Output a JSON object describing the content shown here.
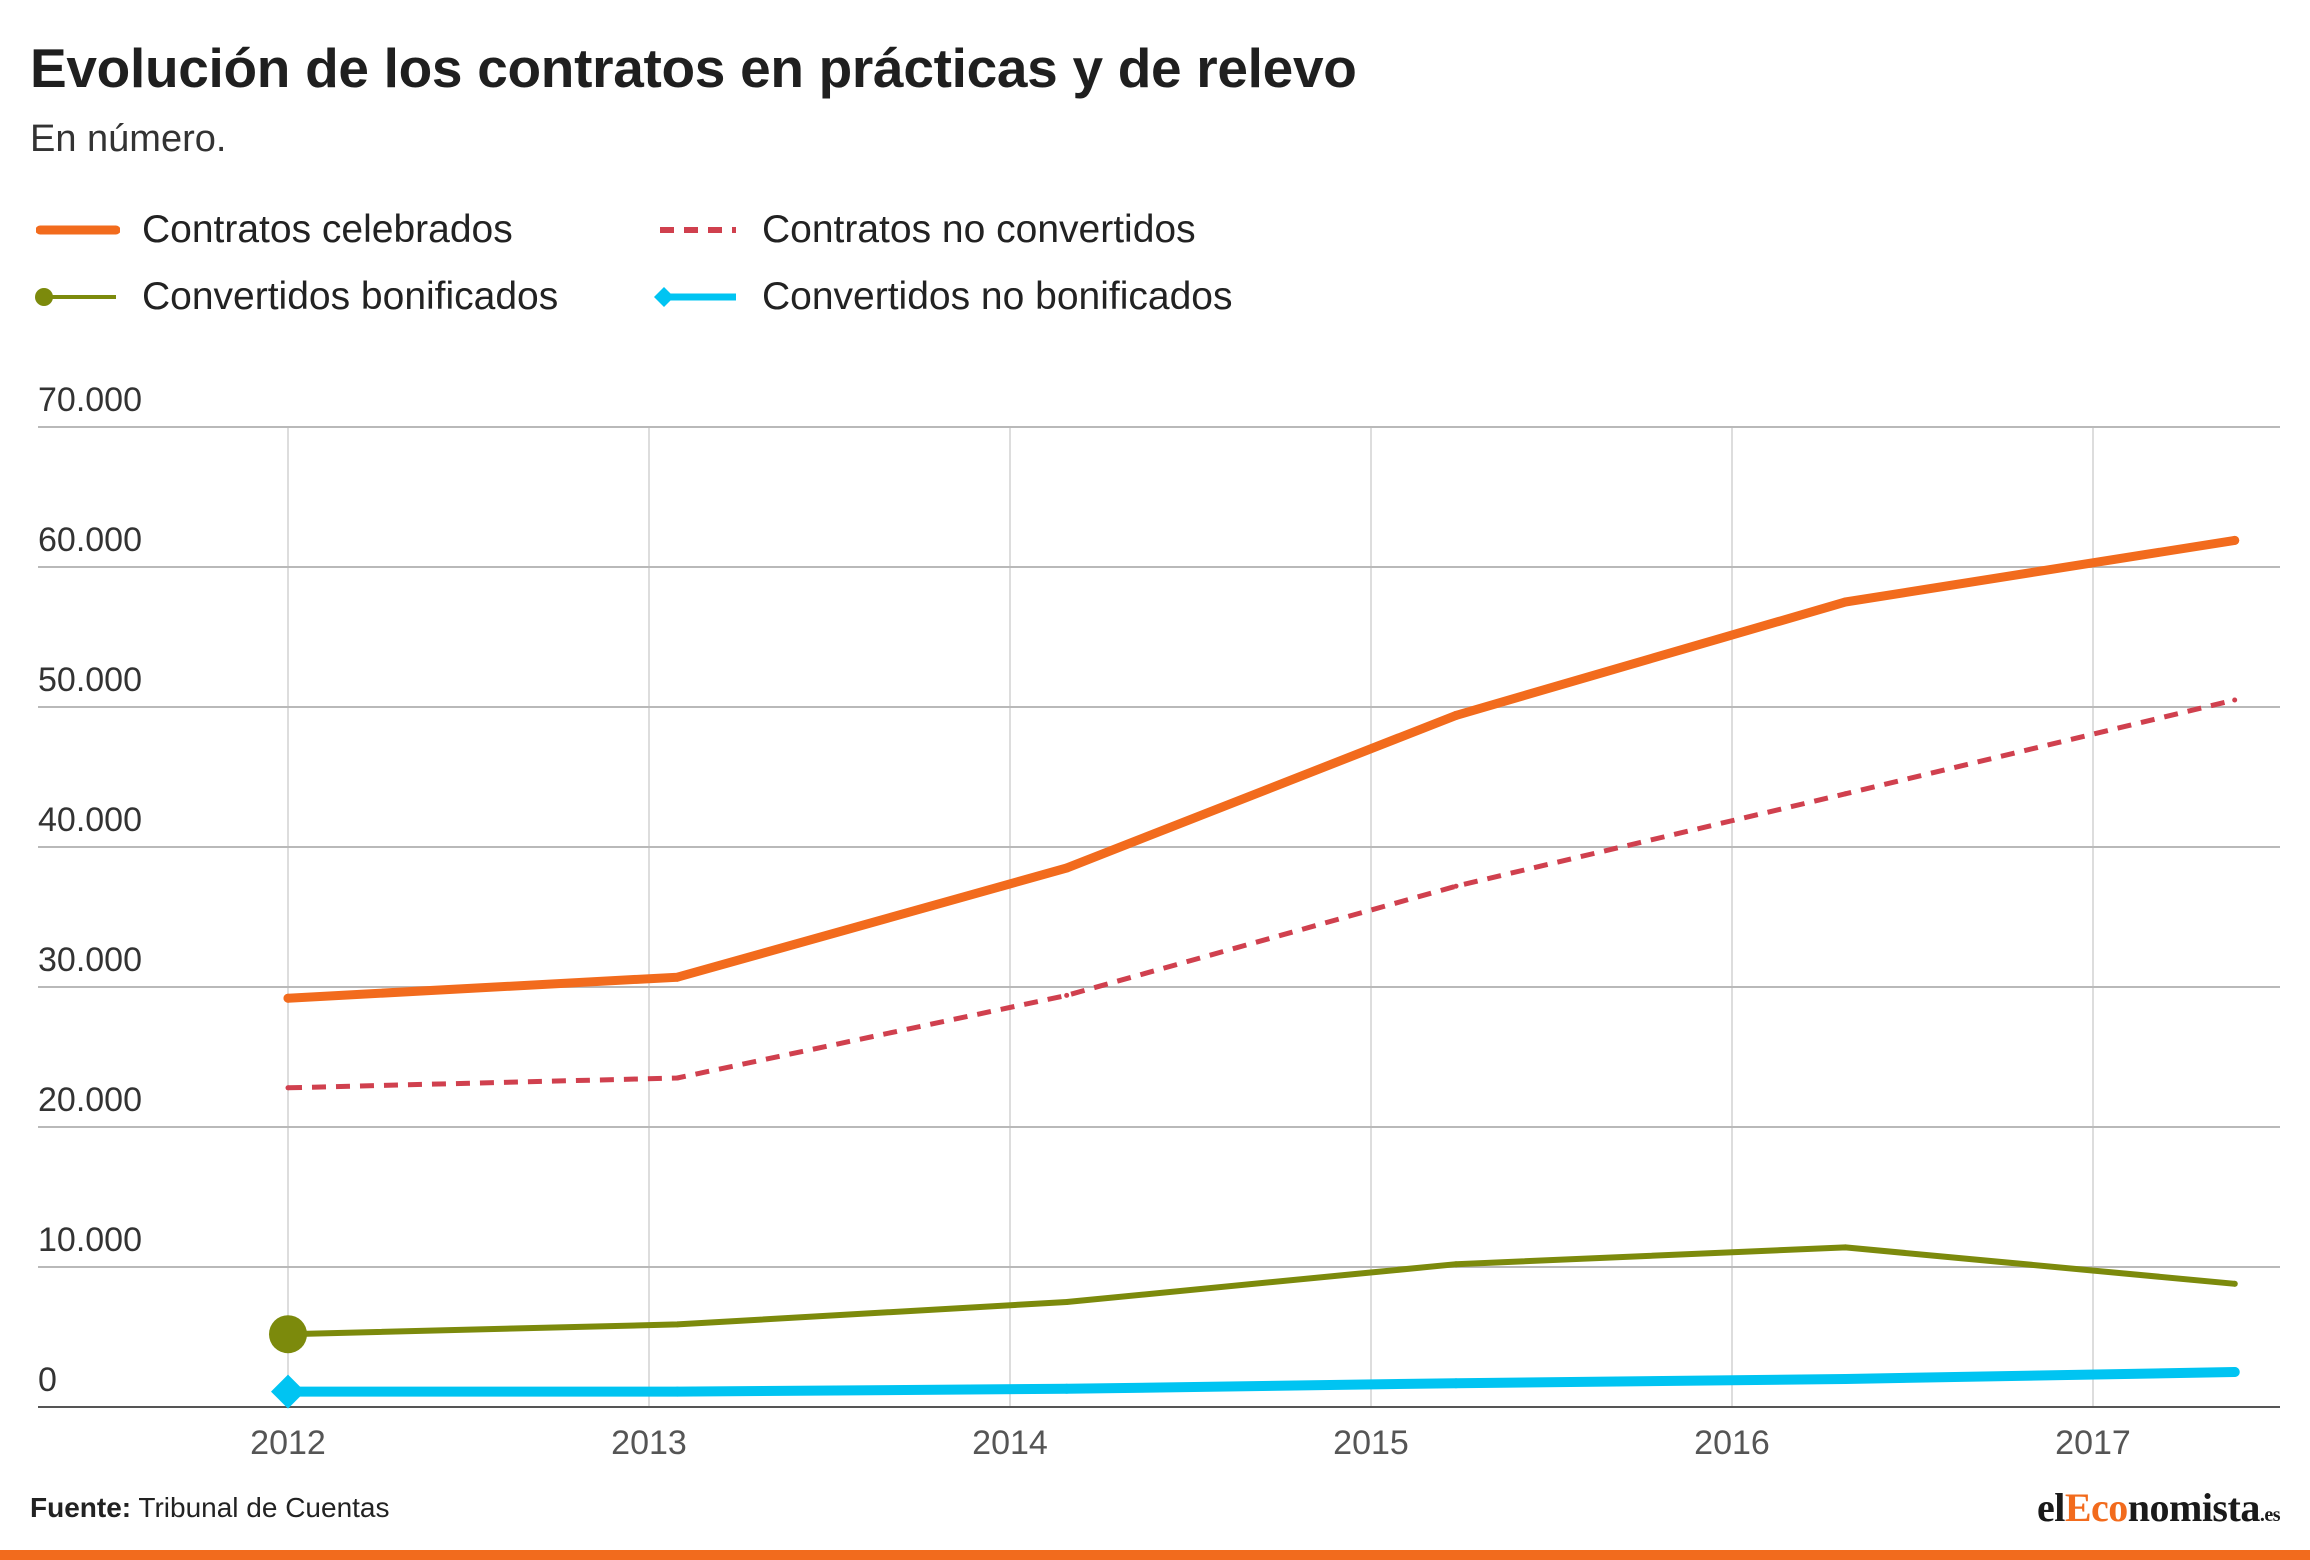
{
  "chart_data": {
    "type": "line",
    "title": "Evolución de los contratos en prácticas y de relevo",
    "subtitle": "En número.",
    "x": [
      "2012",
      "2013",
      "2014",
      "2015",
      "2016",
      "2017"
    ],
    "ylim": [
      0,
      70000
    ],
    "yticks": [
      0,
      10000,
      20000,
      30000,
      40000,
      50000,
      60000,
      70000
    ],
    "ytick_labels": [
      "0",
      "10.000",
      "20.000",
      "30.000",
      "40.000",
      "50.000",
      "60.000",
      "70.000"
    ],
    "grid": true,
    "legend_position": "top-left",
    "series": [
      {
        "name": "Contratos celebrados",
        "color": "#f26b1d",
        "style": "solid-thick",
        "values": [
          29200,
          30700,
          38500,
          49400,
          57500,
          61900
        ]
      },
      {
        "name": "Contratos no convertidos",
        "color": "#d0404e",
        "style": "dashed",
        "values": [
          22800,
          23500,
          29400,
          37200,
          43800,
          50500
        ]
      },
      {
        "name": "Convertidos bonificados",
        "color": "#7c8a0c",
        "style": "solid-circle-marker",
        "values": [
          5200,
          5900,
          7500,
          10200,
          11400,
          8800
        ]
      },
      {
        "name": "Convertidos no bonificados",
        "color": "#00c4f2",
        "style": "solid-diamond-marker",
        "values": [
          1100,
          1100,
          1300,
          1700,
          2000,
          2500
        ]
      }
    ]
  },
  "footer": {
    "source_label": "Fuente:",
    "source_text": "Tribunal de Cuentas",
    "brand_el": "el",
    "brand_eco": "Eco",
    "brand_rest": "nomista",
    "brand_tld": ".es",
    "accent_color": "#f26b1d"
  }
}
